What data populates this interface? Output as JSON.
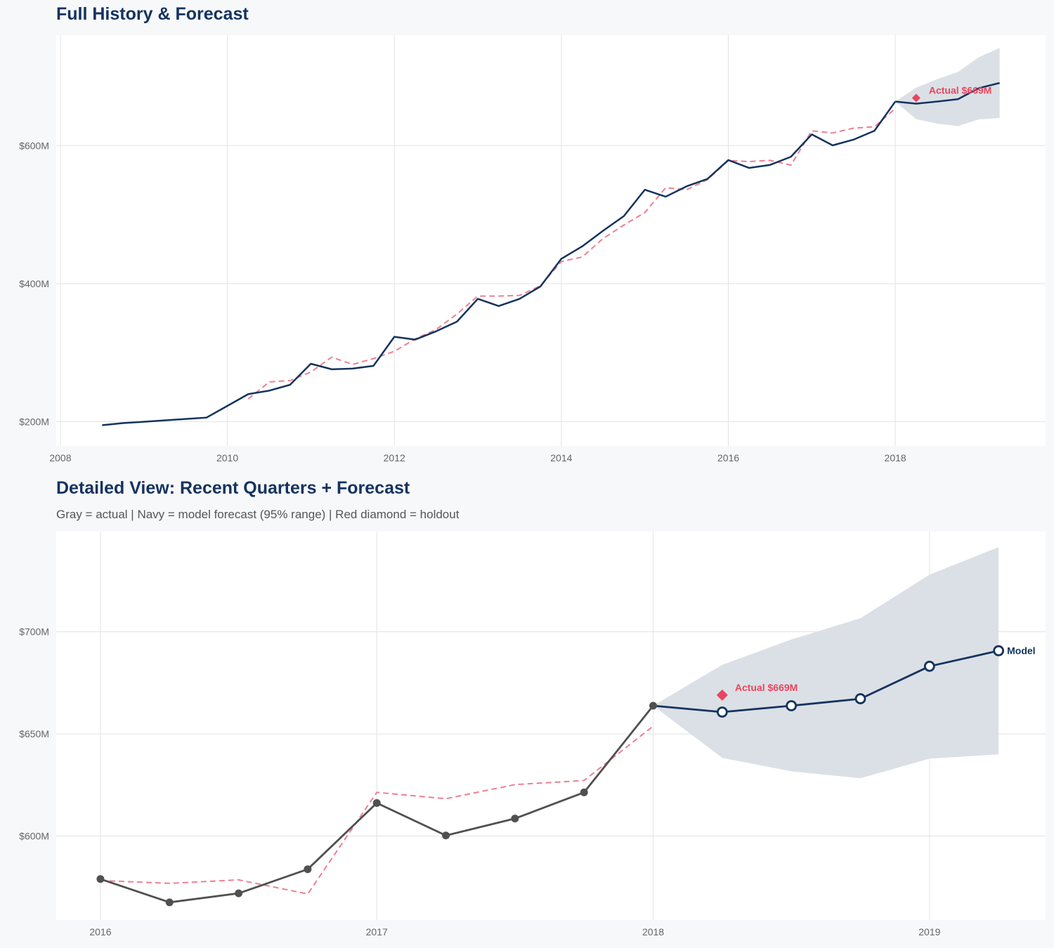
{
  "colors": {
    "navy": "#14335e",
    "gray": "#505050",
    "red": "#e8455f",
    "dashed": "#ee7f91",
    "band": "#dbe0e6",
    "grid": "#e3e3e3"
  },
  "chart_data": [
    {
      "type": "line",
      "title": "Full History & Forecast",
      "xlim": [
        2007.95,
        2019.8
      ],
      "ylim": [
        165,
        760
      ],
      "x_ticks": [
        2008,
        2010,
        2012,
        2014,
        2016,
        2018
      ],
      "x_tick_labels": [
        "2008",
        "2010",
        "2012",
        "2014",
        "2016",
        "2018"
      ],
      "y_ticks": [
        200,
        400,
        600
      ],
      "y_tick_labels": [
        "$200M",
        "$400M",
        "$600M"
      ],
      "grid": true,
      "series": [
        {
          "role": "actual",
          "style": "solid navy",
          "x": [
            2008.5,
            2008.75,
            2009,
            2009.25,
            2009.5,
            2009.75,
            2010,
            2010.25,
            2010.5,
            2010.75,
            2011,
            2011.25,
            2011.5,
            2011.75,
            2012,
            2012.25,
            2012.5,
            2012.75,
            2013,
            2013.25,
            2013.5,
            2013.75,
            2014,
            2014.25,
            2014.5,
            2014.75,
            2015,
            2015.25,
            2015.5,
            2015.75,
            2016,
            2016.25,
            2016.5,
            2016.75,
            2017,
            2017.25,
            2017.5,
            2017.75,
            2018
          ],
          "y": [
            195,
            198,
            200,
            202,
            204,
            206,
            223,
            240,
            245,
            253.5,
            284,
            276,
            277,
            281,
            323,
            319,
            331,
            345,
            378,
            367.6,
            378,
            396,
            436,
            454,
            476.6,
            498,
            536,
            526,
            541,
            551.7,
            579,
            567.6,
            572,
            583.8,
            616.2,
            600.3,
            608.6,
            621.4,
            663.8
          ]
        },
        {
          "role": "fitted",
          "style": "dashed red",
          "x": [
            2010.25,
            2010.5,
            2010.75,
            2011,
            2011.25,
            2011.5,
            2011.75,
            2012,
            2012.25,
            2012.5,
            2012.75,
            2013,
            2013.25,
            2013.5,
            2013.75,
            2014,
            2014.25,
            2014.5,
            2014.75,
            2015,
            2015.25,
            2015.5,
            2015.75,
            2016,
            2016.25,
            2016.5,
            2016.75,
            2017,
            2017.25,
            2017.5,
            2017.75,
            2018
          ],
          "y": [
            233,
            257.6,
            259.6,
            272,
            293.6,
            283,
            291.5,
            302,
            320,
            333.6,
            356,
            382,
            382,
            383,
            397,
            432,
            438.6,
            465.4,
            485,
            503,
            539,
            536,
            550.6,
            578.3,
            576.9,
            578.6,
            571.7,
            621.4,
            618.3,
            625.2,
            627.2,
            653.8
          ]
        },
        {
          "role": "forecast",
          "style": "solid navy",
          "x": [
            2018,
            2018.25,
            2018.5,
            2018.75,
            2019,
            2019.25
          ],
          "y": [
            663.8,
            660.7,
            663.8,
            667.2,
            683.1,
            690.7
          ],
          "lower": [
            663.8,
            638.3,
            631.7,
            628.3,
            637.9,
            640
          ],
          "upper": [
            663.8,
            683.8,
            696.2,
            706.6,
            727.9,
            741.4
          ]
        }
      ],
      "holdout": {
        "x": 2018.25,
        "y": 669,
        "label": "Actual $669M"
      }
    },
    {
      "type": "line",
      "title": "Detailed View: Recent Quarters + Forecast",
      "subtitle": "Gray = actual  |  Navy = model forecast (95% range)  |  Red diamond = holdout",
      "xlim": [
        2015.84,
        2019.42
      ],
      "ylim": [
        559,
        749
      ],
      "x_ticks": [
        2016,
        2017,
        2018,
        2019
      ],
      "x_tick_labels": [
        "2016",
        "2017",
        "2018",
        "2019"
      ],
      "y_ticks": [
        600,
        650,
        700
      ],
      "y_tick_labels": [
        "$600M",
        "$650M",
        "$700M"
      ],
      "grid": true,
      "series": [
        {
          "role": "actual",
          "style": "solid gray with markers",
          "x": [
            2016,
            2016.25,
            2016.5,
            2016.75,
            2017,
            2017.25,
            2017.5,
            2017.75,
            2018
          ],
          "y": [
            579,
            567.6,
            572,
            583.8,
            616.2,
            600.3,
            608.6,
            621.4,
            663.8
          ]
        },
        {
          "role": "fitted",
          "style": "dashed red",
          "x": [
            2016,
            2016.25,
            2016.5,
            2016.75,
            2017,
            2017.25,
            2017.5,
            2017.75,
            2018
          ],
          "y": [
            578.3,
            576.9,
            578.6,
            571.7,
            621.4,
            618.3,
            625.2,
            627.2,
            653.8
          ]
        },
        {
          "role": "forecast",
          "style": "solid navy with open markers",
          "x": [
            2018,
            2018.25,
            2018.5,
            2018.75,
            2019,
            2019.25
          ],
          "y": [
            663.8,
            660.7,
            663.8,
            667.2,
            683.1,
            690.7
          ],
          "lower": [
            663.8,
            638.3,
            631.7,
            628.3,
            637.9,
            640
          ],
          "upper": [
            663.8,
            683.8,
            696.2,
            706.6,
            727.9,
            741.4
          ],
          "end_label": "Model"
        }
      ],
      "holdout": {
        "x": 2018.25,
        "y": 669,
        "label": "Actual $669M"
      }
    }
  ]
}
